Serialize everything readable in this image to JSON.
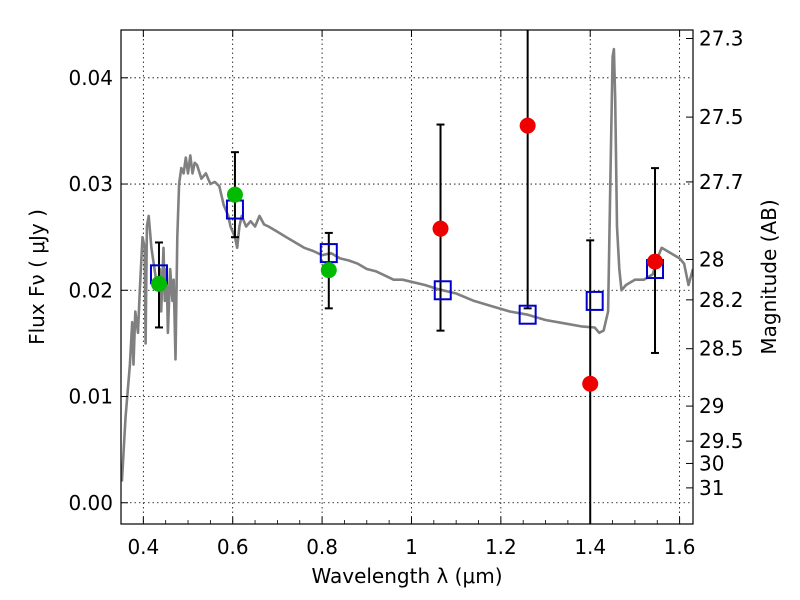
{
  "chart_data": {
    "type": "scatter",
    "xlabel": "Wavelength  λ (μm)",
    "ylabel": "Flux  Fν  ( μJy )",
    "ylabel_right": "Magnitude (AB)",
    "xlim": [
      0.35,
      1.63
    ],
    "ylim": [
      -0.002,
      0.0445
    ],
    "grid": true,
    "x_ticks": [
      0.4,
      0.6,
      0.8,
      1.0,
      1.2,
      1.4,
      1.6
    ],
    "x_tick_labels": [
      "0.4",
      "0.6",
      "0.8",
      "1",
      "1.2",
      "1.4",
      "1.6"
    ],
    "y_ticks": [
      0.0,
      0.01,
      0.02,
      0.03,
      0.04
    ],
    "y_tick_labels": [
      "0.00",
      "0.01",
      "0.02",
      "0.03",
      "0.04"
    ],
    "right_ticks": [
      {
        "label": "27.3",
        "flux": 0.0437
      },
      {
        "label": "27.5",
        "flux": 0.0363
      },
      {
        "label": "27.7",
        "flux": 0.0302
      },
      {
        "label": "28",
        "flux": 0.0229
      },
      {
        "label": "28.2",
        "flux": 0.0191
      },
      {
        "label": "28.5",
        "flux": 0.0145
      },
      {
        "label": "29",
        "flux": 0.0091
      },
      {
        "label": "29.5",
        "flux": 0.0058
      },
      {
        "label": "30",
        "flux": 0.0037
      },
      {
        "label": "31",
        "flux": 0.0014
      }
    ],
    "series": [
      {
        "kind": "line",
        "color": "#808080",
        "points": [
          [
            0.352,
            0.002
          ],
          [
            0.36,
            0.008
          ],
          [
            0.37,
            0.013
          ],
          [
            0.375,
            0.017
          ],
          [
            0.378,
            0.013
          ],
          [
            0.382,
            0.018
          ],
          [
            0.388,
            0.016
          ],
          [
            0.392,
            0.02
          ],
          [
            0.398,
            0.025
          ],
          [
            0.403,
            0.024
          ],
          [
            0.405,
            0.015
          ],
          [
            0.408,
            0.026
          ],
          [
            0.412,
            0.027
          ],
          [
            0.418,
            0.024
          ],
          [
            0.425,
            0.022
          ],
          [
            0.432,
            0.02
          ],
          [
            0.437,
            0.022
          ],
          [
            0.44,
            0.018
          ],
          [
            0.445,
            0.024
          ],
          [
            0.448,
            0.019
          ],
          [
            0.452,
            0.022
          ],
          [
            0.455,
            0.016
          ],
          [
            0.46,
            0.022
          ],
          [
            0.465,
            0.019
          ],
          [
            0.468,
            0.021
          ],
          [
            0.472,
            0.0135
          ],
          [
            0.476,
            0.025
          ],
          [
            0.48,
            0.03
          ],
          [
            0.485,
            0.0315
          ],
          [
            0.49,
            0.031
          ],
          [
            0.495,
            0.0325
          ],
          [
            0.5,
            0.031
          ],
          [
            0.505,
            0.0327
          ],
          [
            0.51,
            0.031
          ],
          [
            0.515,
            0.032
          ],
          [
            0.52,
            0.0318
          ],
          [
            0.53,
            0.0305
          ],
          [
            0.54,
            0.031
          ],
          [
            0.55,
            0.03
          ],
          [
            0.56,
            0.0302
          ],
          [
            0.57,
            0.0298
          ],
          [
            0.58,
            0.028
          ],
          [
            0.59,
            0.027
          ],
          [
            0.595,
            0.026
          ],
          [
            0.6,
            0.0255
          ],
          [
            0.605,
            0.025
          ],
          [
            0.61,
            0.024
          ],
          [
            0.615,
            0.026
          ],
          [
            0.62,
            0.027
          ],
          [
            0.63,
            0.026
          ],
          [
            0.64,
            0.0265
          ],
          [
            0.65,
            0.026
          ],
          [
            0.66,
            0.027
          ],
          [
            0.67,
            0.0262
          ],
          [
            0.68,
            0.026
          ],
          [
            0.7,
            0.0255
          ],
          [
            0.72,
            0.025
          ],
          [
            0.74,
            0.0245
          ],
          [
            0.76,
            0.024
          ],
          [
            0.78,
            0.0237
          ],
          [
            0.8,
            0.0233
          ],
          [
            0.82,
            0.0235
          ],
          [
            0.84,
            0.023
          ],
          [
            0.86,
            0.0228
          ],
          [
            0.88,
            0.0225
          ],
          [
            0.9,
            0.022
          ],
          [
            0.92,
            0.0218
          ],
          [
            0.94,
            0.0214
          ],
          [
            0.96,
            0.021
          ],
          [
            0.98,
            0.021
          ],
          [
            1.0,
            0.0208
          ],
          [
            1.03,
            0.0205
          ],
          [
            1.06,
            0.0201
          ],
          [
            1.1,
            0.0197
          ],
          [
            1.14,
            0.019
          ],
          [
            1.18,
            0.0185
          ],
          [
            1.22,
            0.018
          ],
          [
            1.26,
            0.0177
          ],
          [
            1.3,
            0.0172
          ],
          [
            1.34,
            0.0169
          ],
          [
            1.38,
            0.0166
          ],
          [
            1.41,
            0.0165
          ],
          [
            1.42,
            0.016
          ],
          [
            1.43,
            0.0162
          ],
          [
            1.44,
            0.018
          ],
          [
            1.445,
            0.03
          ],
          [
            1.45,
            0.042
          ],
          [
            1.453,
            0.0427
          ],
          [
            1.456,
            0.038
          ],
          [
            1.46,
            0.026
          ],
          [
            1.465,
            0.022
          ],
          [
            1.47,
            0.02
          ],
          [
            1.48,
            0.0205
          ],
          [
            1.5,
            0.021
          ],
          [
            1.52,
            0.021
          ],
          [
            1.54,
            0.0215
          ],
          [
            1.55,
            0.023
          ],
          [
            1.56,
            0.024
          ],
          [
            1.58,
            0.0235
          ],
          [
            1.6,
            0.023
          ],
          [
            1.61,
            0.0225
          ],
          [
            1.62,
            0.0205
          ],
          [
            1.63,
            0.022
          ]
        ]
      },
      {
        "kind": "model-box",
        "color": "#0000cc",
        "points": [
          [
            0.435,
            0.0215
          ],
          [
            0.605,
            0.0276
          ],
          [
            0.815,
            0.0235
          ],
          [
            1.07,
            0.02
          ],
          [
            1.26,
            0.0177
          ],
          [
            1.41,
            0.019
          ],
          [
            1.545,
            0.022
          ]
        ]
      },
      {
        "kind": "errorbar",
        "color": "#000000",
        "points": [
          {
            "x": 0.435,
            "low": 0.0165,
            "high": 0.0245
          },
          {
            "x": 0.605,
            "low": 0.025,
            "high": 0.033
          },
          {
            "x": 0.815,
            "low": 0.0183,
            "high": 0.0254
          },
          {
            "x": 1.065,
            "low": 0.0162,
            "high": 0.0356
          },
          {
            "x": 1.26,
            "low": 0.0183,
            "high": 0.0445
          },
          {
            "x": 1.4,
            "low": -0.002,
            "high": 0.0247
          },
          {
            "x": 1.545,
            "low": 0.0141,
            "high": 0.0315
          }
        ]
      },
      {
        "kind": "detection",
        "color": "#00bb00",
        "points": [
          [
            0.435,
            0.0206
          ],
          [
            0.605,
            0.029
          ],
          [
            0.815,
            0.0219
          ]
        ]
      },
      {
        "kind": "detection",
        "color": "#ee0000",
        "points": [
          [
            1.065,
            0.0258
          ],
          [
            1.26,
            0.0355
          ],
          [
            1.4,
            0.0112
          ],
          [
            1.545,
            0.0227
          ]
        ]
      }
    ]
  }
}
